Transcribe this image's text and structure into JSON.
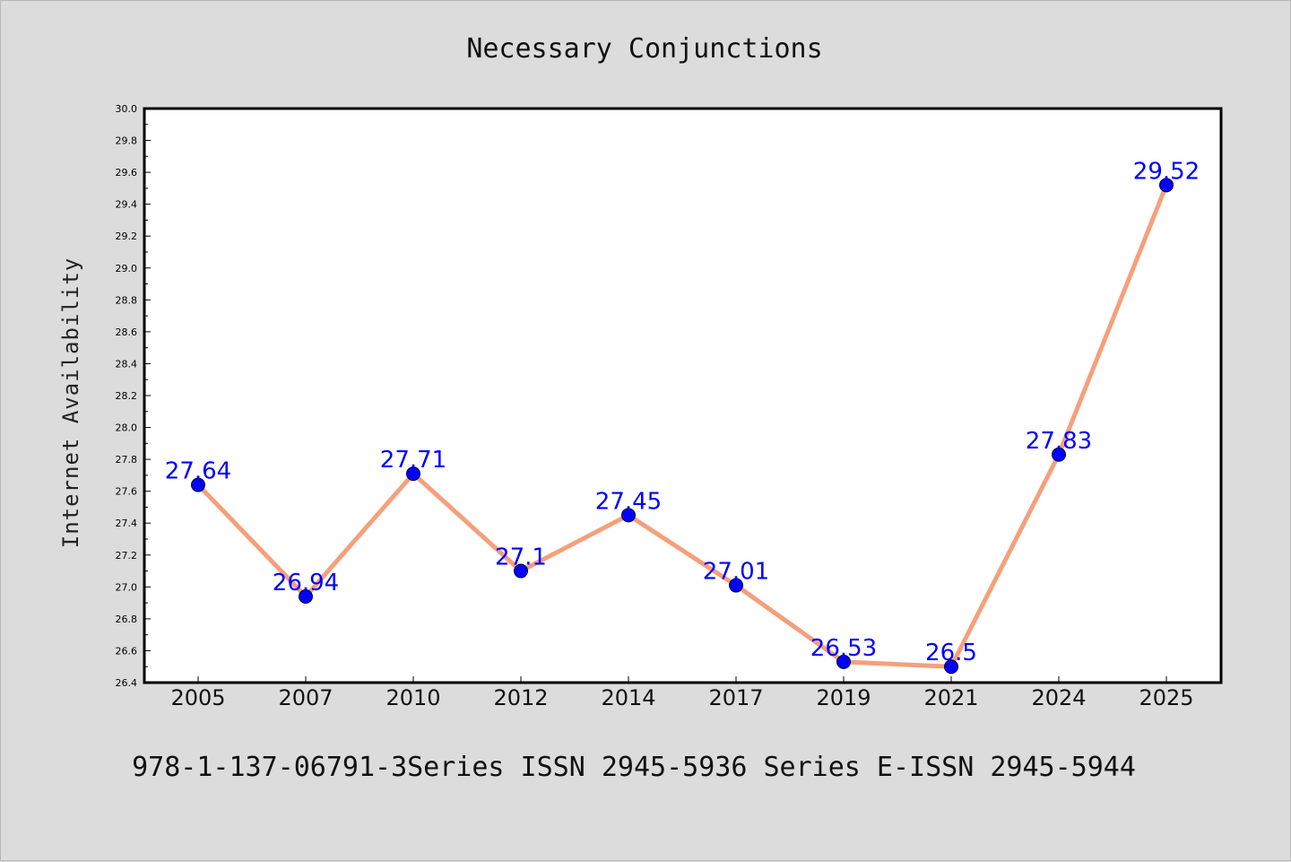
{
  "chart_data": {
    "type": "line",
    "title": "Necessary Conjunctions",
    "xlabel": "",
    "ylabel": "Internet Availability",
    "categories": [
      "2005",
      "2007",
      "2010",
      "2012",
      "2014",
      "2017",
      "2019",
      "2021",
      "2024",
      "2025"
    ],
    "series": [
      {
        "values": [
          27.64,
          26.94,
          27.71,
          27.1,
          27.45,
          27.01,
          26.53,
          26.5,
          27.83,
          29.52
        ],
        "data_labels": [
          "27.64",
          "26.94",
          "27.71",
          "27.1",
          "27.45",
          "27.01",
          "26.53",
          "26.5",
          "27.83",
          "29.52"
        ],
        "line_color": "#f4a07c",
        "marker_color": "#0000ff"
      }
    ],
    "ylim": [
      26.4,
      30.0
    ],
    "yticks": [
      "26.4",
      "26.6",
      "26.8",
      "27.0",
      "27.2",
      "27.4",
      "27.6",
      "27.8",
      "28.0",
      "28.2",
      "28.4",
      "28.6",
      "28.8",
      "29.0",
      "29.2",
      "29.4",
      "29.6",
      "29.8",
      "30.0"
    ],
    "grid": false,
    "legend": "none"
  },
  "footer": "978-1-137-06791-3Series ISSN 2945-5936 Series E-ISSN 2945-5944",
  "colors": {
    "background": "#dcdcdc",
    "plot_area": "#ffffff",
    "line": "#f4a07c",
    "marker": "#0000ff",
    "data_label": "#0000ff"
  }
}
